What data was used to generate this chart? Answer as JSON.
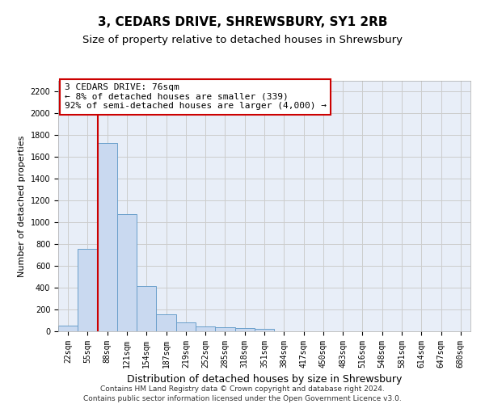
{
  "title": "3, CEDARS DRIVE, SHREWSBURY, SY1 2RB",
  "subtitle": "Size of property relative to detached houses in Shrewsbury",
  "xlabel": "Distribution of detached houses by size in Shrewsbury",
  "ylabel": "Number of detached properties",
  "bin_labels": [
    "22sqm",
    "55sqm",
    "88sqm",
    "121sqm",
    "154sqm",
    "187sqm",
    "219sqm",
    "252sqm",
    "285sqm",
    "318sqm",
    "351sqm",
    "384sqm",
    "417sqm",
    "450sqm",
    "483sqm",
    "516sqm",
    "548sqm",
    "581sqm",
    "614sqm",
    "647sqm",
    "680sqm"
  ],
  "bar_values": [
    55,
    760,
    1730,
    1075,
    415,
    155,
    80,
    48,
    38,
    30,
    20,
    0,
    0,
    0,
    0,
    0,
    0,
    0,
    0,
    0,
    0
  ],
  "bar_color": "#c9d9f0",
  "bar_edgecolor": "#6a9fcb",
  "vline_x_pos": 1.5,
  "vline_color": "#cc0000",
  "annotation_text": "3 CEDARS DRIVE: 76sqm\n← 8% of detached houses are smaller (339)\n92% of semi-detached houses are larger (4,000) →",
  "annotation_box_color": "#ffffff",
  "annotation_box_edgecolor": "#cc0000",
  "ylim": [
    0,
    2300
  ],
  "yticks": [
    0,
    200,
    400,
    600,
    800,
    1000,
    1200,
    1400,
    1600,
    1800,
    2000,
    2200
  ],
  "grid_color": "#cccccc",
  "bg_color": "#e8eef8",
  "footer_line1": "Contains HM Land Registry data © Crown copyright and database right 2024.",
  "footer_line2": "Contains public sector information licensed under the Open Government Licence v3.0.",
  "title_fontsize": 11,
  "subtitle_fontsize": 9.5,
  "xlabel_fontsize": 9,
  "ylabel_fontsize": 8,
  "tick_fontsize": 7,
  "annotation_fontsize": 8,
  "footer_fontsize": 6.5
}
